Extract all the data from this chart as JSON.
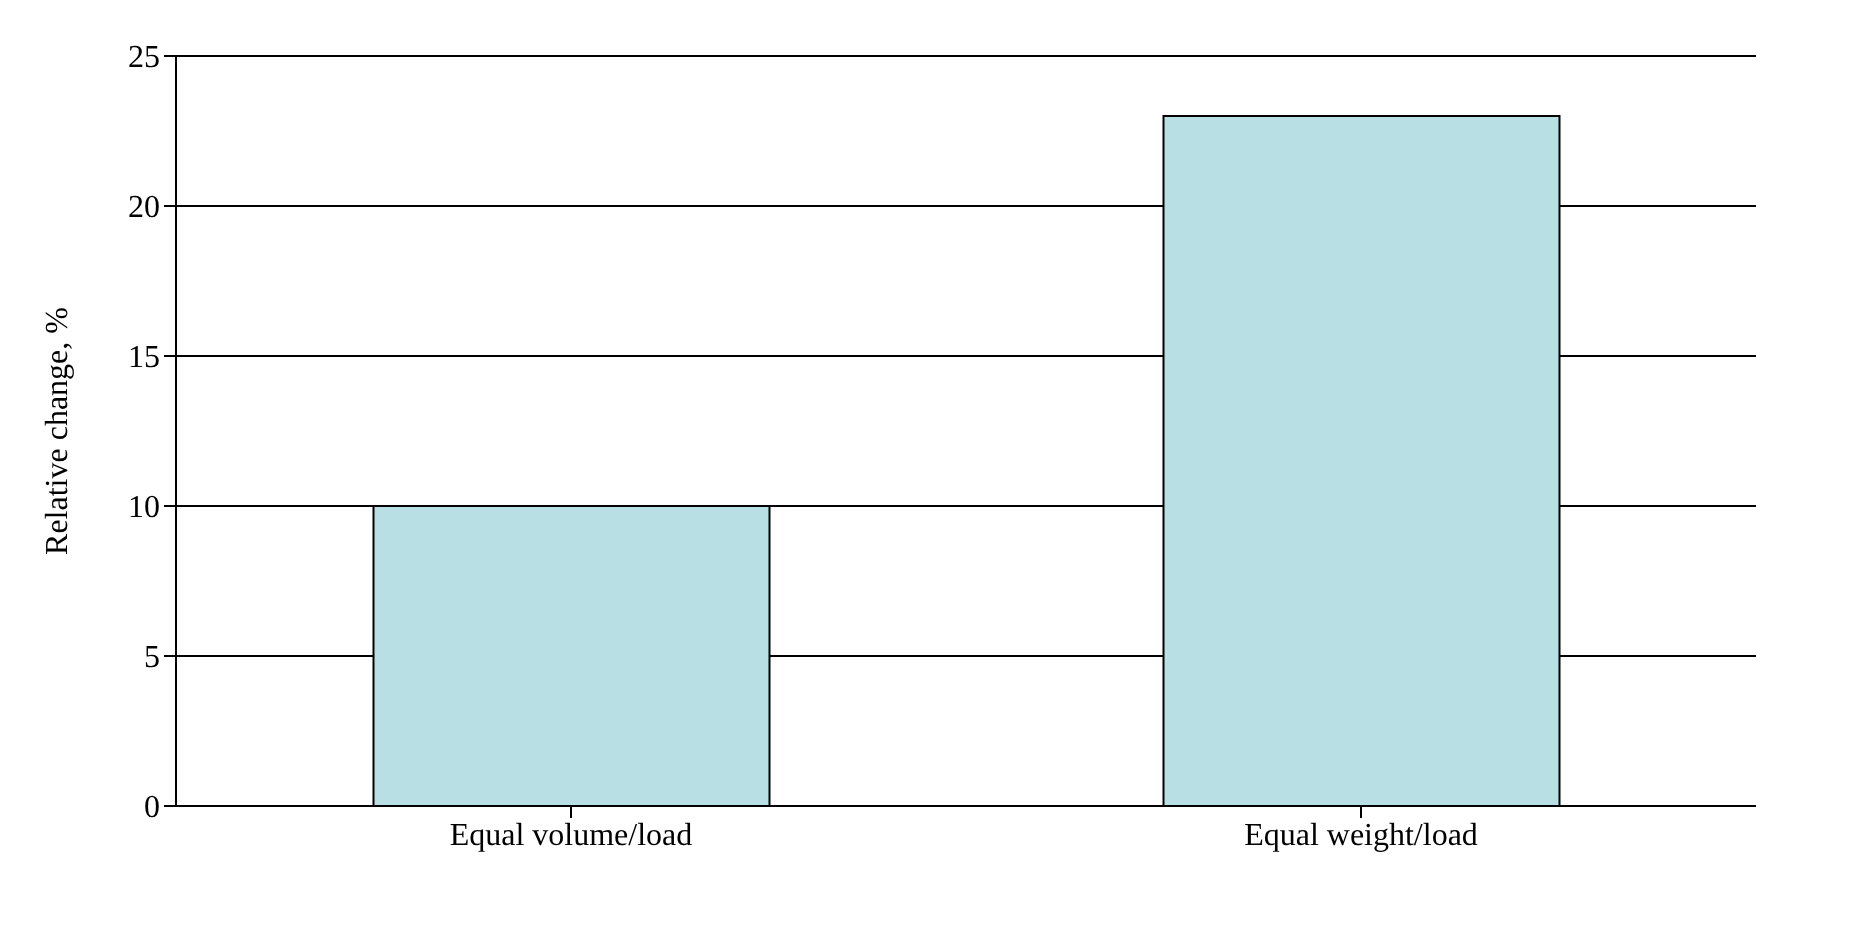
{
  "chart_data": {
    "type": "bar",
    "ylabel": "Relative change, %",
    "categories": [
      "Equal volume/load",
      "Equal weight/load"
    ],
    "values": [
      10,
      23
    ],
    "color": "#b8dfe3",
    "ylim": [
      0,
      25
    ],
    "yticks": [
      0,
      5,
      10,
      15,
      20,
      25
    ],
    "grid": "y"
  }
}
